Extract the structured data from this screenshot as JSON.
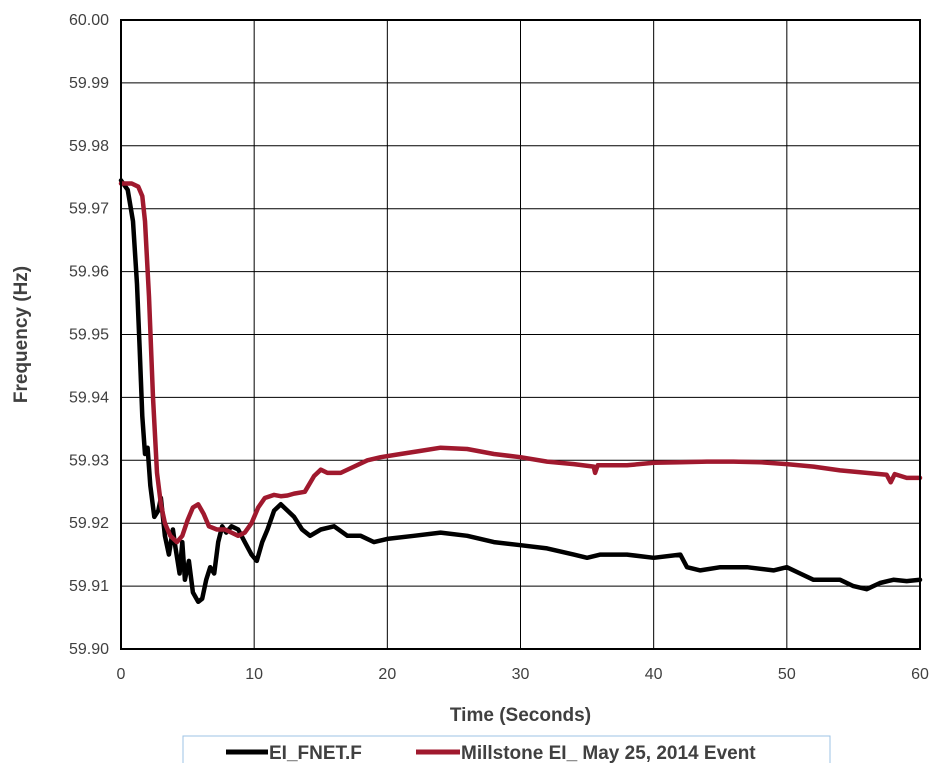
{
  "chart_data": {
    "type": "line",
    "title": "",
    "xlabel": "Time (Seconds)",
    "ylabel": "Frequency (Hz)",
    "xlim": [
      0,
      60
    ],
    "ylim": [
      59.9,
      60.0
    ],
    "x_ticks": [
      "0",
      "10",
      "20",
      "30",
      "40",
      "50",
      "60"
    ],
    "y_ticks": [
      "59.90",
      "59.91",
      "59.92",
      "59.93",
      "59.94",
      "59.95",
      "59.96",
      "59.97",
      "59.98",
      "59.99",
      "60.00"
    ],
    "grid": true,
    "legend_position": "bottom",
    "series": [
      {
        "name": "EI_FNET.F",
        "color": "#000000",
        "points": [
          [
            0,
            59.9745
          ],
          [
            0.5,
            59.973
          ],
          [
            0.9,
            59.968
          ],
          [
            1.2,
            59.958
          ],
          [
            1.4,
            59.948
          ],
          [
            1.6,
            59.937
          ],
          [
            1.8,
            59.931
          ],
          [
            2.0,
            59.932
          ],
          [
            2.2,
            59.926
          ],
          [
            2.5,
            59.921
          ],
          [
            2.8,
            59.922
          ],
          [
            3.0,
            59.924
          ],
          [
            3.3,
            59.918
          ],
          [
            3.6,
            59.915
          ],
          [
            3.9,
            59.919
          ],
          [
            4.1,
            59.916
          ],
          [
            4.4,
            59.912
          ],
          [
            4.6,
            59.917
          ],
          [
            4.8,
            59.911
          ],
          [
            5.1,
            59.914
          ],
          [
            5.4,
            59.909
          ],
          [
            5.8,
            59.9075
          ],
          [
            6.1,
            59.908
          ],
          [
            6.4,
            59.911
          ],
          [
            6.7,
            59.913
          ],
          [
            7.0,
            59.912
          ],
          [
            7.3,
            59.917
          ],
          [
            7.6,
            59.9195
          ],
          [
            7.9,
            59.9185
          ],
          [
            8.3,
            59.9195
          ],
          [
            8.8,
            59.919
          ],
          [
            9.3,
            59.917
          ],
          [
            9.8,
            59.915
          ],
          [
            10.2,
            59.914
          ],
          [
            10.6,
            59.917
          ],
          [
            11.0,
            59.919
          ],
          [
            11.5,
            59.922
          ],
          [
            12.0,
            59.923
          ],
          [
            12.5,
            59.922
          ],
          [
            13.0,
            59.921
          ],
          [
            13.6,
            59.919
          ],
          [
            14.2,
            59.918
          ],
          [
            15.0,
            59.919
          ],
          [
            16.0,
            59.9195
          ],
          [
            17.0,
            59.918
          ],
          [
            18.0,
            59.918
          ],
          [
            19.0,
            59.917
          ],
          [
            20.0,
            59.9175
          ],
          [
            22.0,
            59.918
          ],
          [
            24.0,
            59.9185
          ],
          [
            26.0,
            59.918
          ],
          [
            28.0,
            59.917
          ],
          [
            30.0,
            59.9165
          ],
          [
            32.0,
            59.916
          ],
          [
            34.0,
            59.915
          ],
          [
            35.0,
            59.9145
          ],
          [
            36.0,
            59.915
          ],
          [
            38.0,
            59.915
          ],
          [
            40.0,
            59.9145
          ],
          [
            42.0,
            59.915
          ],
          [
            42.5,
            59.913
          ],
          [
            43.5,
            59.9125
          ],
          [
            45.0,
            59.913
          ],
          [
            47.0,
            59.913
          ],
          [
            49.0,
            59.9125
          ],
          [
            50.0,
            59.913
          ],
          [
            51.0,
            59.912
          ],
          [
            52.0,
            59.911
          ],
          [
            53.0,
            59.911
          ],
          [
            54.0,
            59.911
          ],
          [
            55.0,
            59.91
          ],
          [
            56.0,
            59.9095
          ],
          [
            57.0,
            59.9105
          ],
          [
            58.0,
            59.911
          ],
          [
            59.0,
            59.9108
          ],
          [
            60.0,
            59.911
          ]
        ]
      },
      {
        "name": "Millstone EI_ May 25, 2014 Event",
        "color": "#a0192e",
        "points": [
          [
            0,
            59.974
          ],
          [
            0.8,
            59.974
          ],
          [
            1.3,
            59.9735
          ],
          [
            1.6,
            59.972
          ],
          [
            1.8,
            59.968
          ],
          [
            2.1,
            59.956
          ],
          [
            2.4,
            59.94
          ],
          [
            2.7,
            59.928
          ],
          [
            3.0,
            59.923
          ],
          [
            3.3,
            59.92
          ],
          [
            3.7,
            59.918
          ],
          [
            4.2,
            59.917
          ],
          [
            4.6,
            59.918
          ],
          [
            5.0,
            59.9205
          ],
          [
            5.4,
            59.9225
          ],
          [
            5.8,
            59.923
          ],
          [
            6.2,
            59.9215
          ],
          [
            6.6,
            59.9195
          ],
          [
            7.2,
            59.919
          ],
          [
            7.8,
            59.919
          ],
          [
            8.3,
            59.9185
          ],
          [
            8.8,
            59.918
          ],
          [
            9.3,
            59.9185
          ],
          [
            9.8,
            59.92
          ],
          [
            10.3,
            59.9225
          ],
          [
            10.8,
            59.924
          ],
          [
            11.5,
            59.9245
          ],
          [
            12.0,
            59.9243
          ],
          [
            12.5,
            59.9244
          ],
          [
            13.0,
            59.9247
          ],
          [
            13.8,
            59.925
          ],
          [
            14.5,
            59.9275
          ],
          [
            15.0,
            59.9285
          ],
          [
            15.5,
            59.928
          ],
          [
            16.5,
            59.928
          ],
          [
            17.5,
            59.929
          ],
          [
            18.5,
            59.93
          ],
          [
            19.5,
            59.9305
          ],
          [
            21.0,
            59.931
          ],
          [
            22.5,
            59.9315
          ],
          [
            24.0,
            59.932
          ],
          [
            26.0,
            59.9318
          ],
          [
            28.0,
            59.931
          ],
          [
            30.0,
            59.9305
          ],
          [
            32.0,
            59.9298
          ],
          [
            34.0,
            59.9294
          ],
          [
            35.5,
            59.929
          ],
          [
            35.6,
            59.928
          ],
          [
            35.8,
            59.9292
          ],
          [
            38.0,
            59.9292
          ],
          [
            40.0,
            59.9296
          ],
          [
            42.0,
            59.9297
          ],
          [
            44.0,
            59.9298
          ],
          [
            46.0,
            59.9298
          ],
          [
            48.0,
            59.9297
          ],
          [
            50.0,
            59.9294
          ],
          [
            52.0,
            59.929
          ],
          [
            54.0,
            59.9284
          ],
          [
            56.0,
            59.928
          ],
          [
            57.5,
            59.9277
          ],
          [
            57.8,
            59.9265
          ],
          [
            58.1,
            59.9278
          ],
          [
            59.0,
            59.9272
          ],
          [
            60.0,
            59.9272
          ]
        ]
      }
    ]
  }
}
